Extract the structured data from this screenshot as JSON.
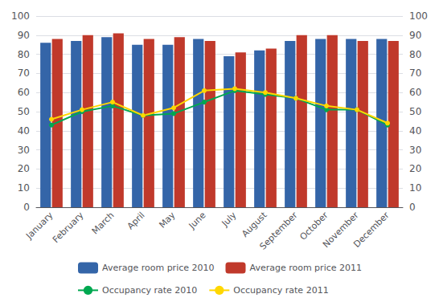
{
  "chart_data": {
    "type": "bar",
    "categories": [
      "January",
      "February",
      "March",
      "April",
      "May",
      "June",
      "July",
      "August",
      "September",
      "October",
      "November",
      "December"
    ],
    "series": [
      {
        "name": "Average room price 2010",
        "type": "bar",
        "color": "#3465A8",
        "values": [
          86,
          87,
          89,
          85,
          85,
          88,
          79,
          82,
          87,
          88,
          88,
          88
        ]
      },
      {
        "name": "Average room price 2011",
        "type": "bar",
        "color": "#C0392B",
        "values": [
          88,
          90,
          91,
          88,
          89,
          87,
          81,
          83,
          90,
          90,
          87,
          87
        ]
      },
      {
        "name": "Occupancy rate 2010",
        "type": "line",
        "axis": "y2",
        "marker": "circle",
        "color": "#00A850",
        "values": [
          43,
          50,
          53,
          48,
          49,
          55,
          61,
          59,
          57,
          51,
          51,
          43
        ]
      },
      {
        "name": "Occupancy rate 2011",
        "type": "line",
        "axis": "y2",
        "marker": "circle",
        "color": "#FFD700",
        "values": [
          46,
          51,
          55,
          48,
          52,
          61,
          62,
          60,
          57,
          53,
          51,
          44
        ]
      }
    ],
    "ylim": [
      0,
      100
    ],
    "yticks": [
      0,
      10,
      20,
      30,
      40,
      50,
      60,
      70,
      80,
      90,
      100
    ],
    "y2lim": [
      0,
      100
    ],
    "y2ticks": [
      0,
      10,
      20,
      30,
      40,
      50,
      60,
      70,
      80,
      90,
      100
    ],
    "grid": true,
    "legend": "bottom"
  }
}
